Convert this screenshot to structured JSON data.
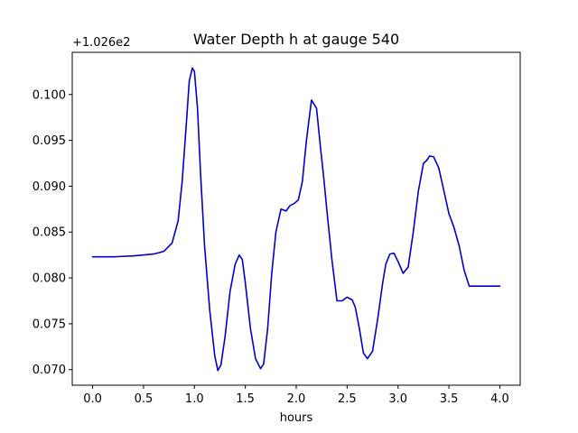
{
  "chart_data": {
    "type": "line",
    "title": "Water Depth h at gauge 540",
    "xlabel": "hours",
    "ylabel": "",
    "y_offset_label": "+1.026e2",
    "xlim": [
      -0.2,
      4.2
    ],
    "ylim": [
      0.0683,
      0.1046
    ],
    "grid": false,
    "xticks": [
      {
        "value": 0.0,
        "label": "0.0"
      },
      {
        "value": 0.5,
        "label": "0.5"
      },
      {
        "value": 1.0,
        "label": "1.0"
      },
      {
        "value": 1.5,
        "label": "1.5"
      },
      {
        "value": 2.0,
        "label": "2.0"
      },
      {
        "value": 2.5,
        "label": "2.5"
      },
      {
        "value": 3.0,
        "label": "3.0"
      },
      {
        "value": 3.5,
        "label": "3.5"
      },
      {
        "value": 4.0,
        "label": "4.0"
      }
    ],
    "yticks": [
      {
        "value": 0.07,
        "label": "0.070"
      },
      {
        "value": 0.075,
        "label": "0.075"
      },
      {
        "value": 0.08,
        "label": "0.080"
      },
      {
        "value": 0.085,
        "label": "0.085"
      },
      {
        "value": 0.09,
        "label": "0.090"
      },
      {
        "value": 0.095,
        "label": "0.095"
      },
      {
        "value": 0.1,
        "label": "0.100"
      }
    ],
    "series": [
      {
        "color": "#0000cc",
        "x": [
          0.0,
          0.2,
          0.4,
          0.6,
          0.7,
          0.78,
          0.84,
          0.88,
          0.92,
          0.95,
          0.98,
          1.0,
          1.03,
          1.06,
          1.1,
          1.15,
          1.2,
          1.23,
          1.26,
          1.3,
          1.35,
          1.4,
          1.44,
          1.47,
          1.5,
          1.55,
          1.6,
          1.65,
          1.68,
          1.72,
          1.76,
          1.8,
          1.85,
          1.9,
          1.94,
          1.98,
          2.02,
          2.06,
          2.1,
          2.15,
          2.2,
          2.24,
          2.27,
          2.3,
          2.35,
          2.4,
          2.45,
          2.5,
          2.55,
          2.58,
          2.62,
          2.66,
          2.7,
          2.75,
          2.8,
          2.85,
          2.88,
          2.92,
          2.96,
          3.0,
          3.05,
          3.1,
          3.15,
          3.2,
          3.25,
          3.28,
          3.31,
          3.35,
          3.4,
          3.45,
          3.5,
          3.55,
          3.6,
          3.65,
          3.7,
          3.75,
          3.8,
          3.85,
          3.9,
          3.95,
          4.0
        ],
        "y": [
          0.0823,
          0.0823,
          0.0824,
          0.0826,
          0.0829,
          0.0838,
          0.0862,
          0.0905,
          0.0968,
          0.1015,
          0.1029,
          0.1025,
          0.0985,
          0.0915,
          0.0835,
          0.0765,
          0.0715,
          0.0699,
          0.0705,
          0.0735,
          0.0785,
          0.0815,
          0.0825,
          0.082,
          0.0795,
          0.0745,
          0.0712,
          0.0701,
          0.0706,
          0.0745,
          0.0805,
          0.085,
          0.0875,
          0.0873,
          0.0879,
          0.0881,
          0.0885,
          0.0905,
          0.095,
          0.0994,
          0.0985,
          0.094,
          0.091,
          0.0875,
          0.082,
          0.0775,
          0.0775,
          0.0779,
          0.0776,
          0.0768,
          0.0745,
          0.0718,
          0.0712,
          0.072,
          0.0755,
          0.0795,
          0.0815,
          0.0826,
          0.0827,
          0.0818,
          0.0805,
          0.0812,
          0.085,
          0.0895,
          0.0925,
          0.0928,
          0.0933,
          0.0932,
          0.092,
          0.0895,
          0.087,
          0.0855,
          0.0835,
          0.0808,
          0.0791,
          0.0791,
          0.0791,
          0.0791,
          0.0791,
          0.0791,
          0.0791
        ]
      }
    ]
  }
}
